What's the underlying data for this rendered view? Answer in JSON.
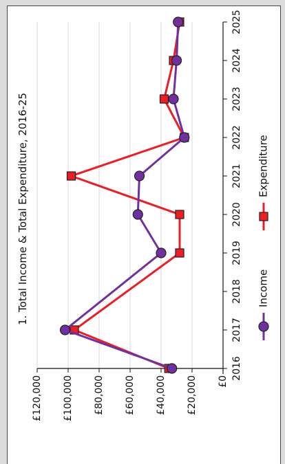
{
  "chart_data": {
    "type": "line",
    "title": "1. Total Income & Total Expenditure, 2016-25",
    "x": [
      "2016",
      "2017",
      "2018",
      "2019",
      "2020",
      "2021",
      "2022",
      "2023",
      "2024",
      "2025"
    ],
    "series": [
      {
        "name": "Income",
        "color": "#7030a0",
        "marker": "circle",
        "values": [
          33000,
          102000,
          null,
          40000,
          55000,
          54000,
          25000,
          32000,
          30000,
          29000
        ]
      },
      {
        "name": "Expenditure",
        "color": "#ee1c24",
        "marker": "square",
        "values": [
          35000,
          96000,
          null,
          28000,
          28000,
          98000,
          25000,
          38000,
          32000,
          28000
        ]
      }
    ],
    "ylim": [
      0,
      120000
    ],
    "y_ticks": [
      "£0",
      "£20,000",
      "£40,000",
      "£60,000",
      "£80,000",
      "£100,000",
      "£120,000"
    ],
    "y_tick_values": [
      0,
      20000,
      40000,
      60000,
      80000,
      100000,
      120000
    ],
    "grid": true,
    "legend": "bottom",
    "orientation": "rotated-90"
  }
}
